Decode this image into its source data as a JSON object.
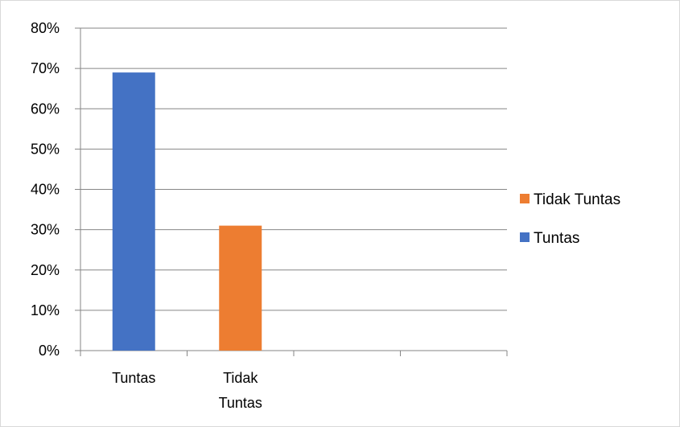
{
  "chart_data": {
    "type": "bar",
    "title": "",
    "xlabel": "",
    "ylabel": "",
    "categories": [
      "Tuntas",
      "Tidak Tuntas",
      "",
      ""
    ],
    "category_lines": [
      [
        "Tuntas"
      ],
      [
        "Tidak",
        "Tuntas"
      ],
      [],
      []
    ],
    "values": [
      0.69,
      0.31,
      null,
      null
    ],
    "bar_colors": [
      "#4472C4",
      "#ED7D31",
      null,
      null
    ],
    "ylim": [
      0,
      0.8
    ],
    "y_ticks": [
      0,
      0.1,
      0.2,
      0.3,
      0.4,
      0.5,
      0.6,
      0.7,
      0.8
    ],
    "y_tick_labels": [
      "0%",
      "10%",
      "20%",
      "30%",
      "40%",
      "50%",
      "60%",
      "70%",
      "80%"
    ],
    "grid": true,
    "legend_position": "right",
    "legend": [
      {
        "label": "Tidak Tuntas",
        "color": "#ED7D31"
      },
      {
        "label": "Tuntas",
        "color": "#4472C4"
      }
    ]
  }
}
